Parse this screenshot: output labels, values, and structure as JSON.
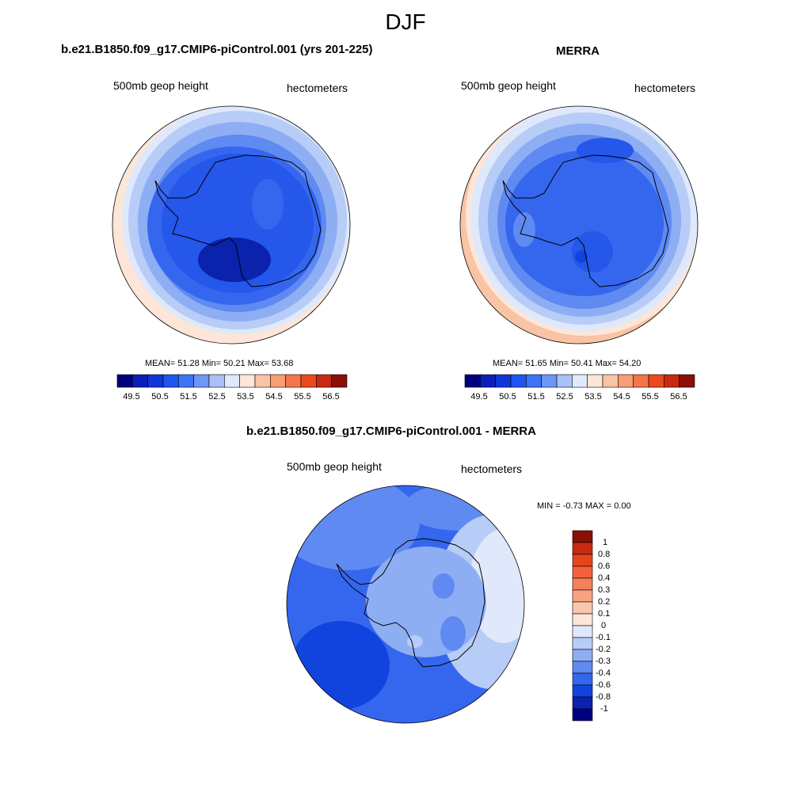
{
  "figure": {
    "title": "DJF"
  },
  "panels": {
    "model": {
      "title": "b.e21.B1850.f09_g17.CMIP6-piControl.001 (yrs 201-225)",
      "left_label": "500mb geop height",
      "right_label": "hectometers",
      "stats": "MEAN=  51.28  Min=  50.21  Max=  53.68"
    },
    "obs": {
      "title": "MERRA",
      "left_label": "500mb geop height",
      "right_label": "hectometers",
      "stats": "MEAN=  51.65  Min=  50.41  Max=  54.20"
    },
    "diff": {
      "title": "b.e21.B1850.f09_g17.CMIP6-piControl.001 - MERRA",
      "left_label": "500mb geop height",
      "right_label": "hectometers",
      "stats": "MIN =  -0.73 MAX =   0.00"
    }
  },
  "colorbars": {
    "abs": {
      "ticks": [
        "49.5",
        "50.5",
        "51.5",
        "52.5",
        "53.5",
        "54.5",
        "55.5",
        "56.5"
      ],
      "colors": [
        "#00007f",
        "#0b1fb8",
        "#0f36d6",
        "#1f54ef",
        "#3d74f5",
        "#6e96f7",
        "#a8c0f5",
        "#dfe9fb",
        "#fde5d8",
        "#f9c3a5",
        "#f79e74",
        "#f4754a",
        "#ea4a1c",
        "#c72a10",
        "#8a0f06"
      ]
    },
    "diff": {
      "ticks": [
        "1",
        "0.8",
        "0.6",
        "0.4",
        "0.3",
        "0.2",
        "0.1",
        "0",
        "-0.1",
        "-0.2",
        "-0.3",
        "-0.4",
        "-0.6",
        "-0.8",
        "-1"
      ],
      "colors": [
        "#8a0f06",
        "#c72a10",
        "#e8441a",
        "#f4603a",
        "#f6805a",
        "#f9a47e",
        "#fbc7ac",
        "#fde6d8",
        "#dfe9fb",
        "#b7ccf6",
        "#8eaef4",
        "#5f8af1",
        "#3566ee",
        "#1144de",
        "#0b22ac",
        "#00007f"
      ]
    }
  },
  "map_colors": {
    "c1": "#0b22ac",
    "c2": "#1144de",
    "c3": "#2457ea",
    "c4": "#3566ee",
    "c5": "#5f8af1",
    "c6": "#8eaef4",
    "c7": "#b7ccf6",
    "c8": "#dfe9fb",
    "c9": "#fde6d8"
  }
}
